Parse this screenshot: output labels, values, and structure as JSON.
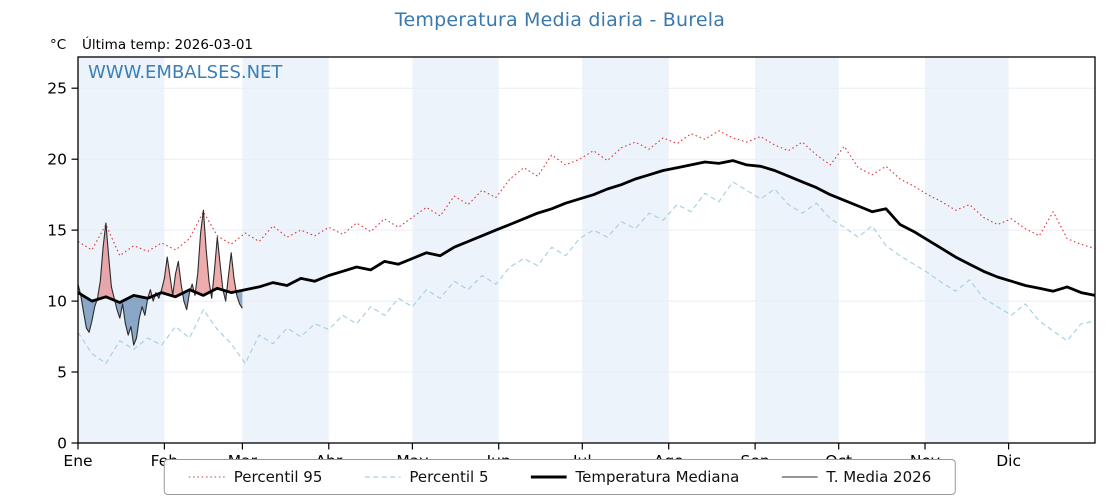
{
  "title": "Temperatura Media diaria - Burela",
  "watermark": "WWW.EMBALSES.NET",
  "header": {
    "unit_label": "°C",
    "last_temp_label": "Última temp: 2026-03-01"
  },
  "colors": {
    "title": "#3a79ae",
    "watermark": "#3a7fb8",
    "band": "#edf3fa",
    "grid": "#e7eef5",
    "axis": "#000000",
    "fill_above": "rgba(222,92,92,0.5)",
    "fill_below": "rgba(72,116,166,0.6)"
  },
  "chart_data": {
    "type": "line",
    "title": "Temperatura Media diaria - Burela",
    "xlabel": "",
    "ylabel": "°C",
    "ylim": [
      0,
      27.2
    ],
    "yticks": [
      0,
      5,
      10,
      15,
      20,
      25
    ],
    "months": [
      "Ene",
      "Feb",
      "Mar",
      "Abr",
      "May",
      "Jun",
      "Jul",
      "Ago",
      "Sep",
      "Oct",
      "Nov",
      "Dic"
    ],
    "month_days": [
      31,
      28,
      31,
      30,
      31,
      30,
      31,
      31,
      30,
      31,
      30,
      31
    ],
    "legend_position": "bottom",
    "series": [
      {
        "name": "Percentil 95",
        "style": "dotted",
        "color": "#d93b3b",
        "width": 1.1,
        "step": 5,
        "values": [
          14.2,
          13.6,
          15.4,
          13.2,
          13.9,
          13.5,
          14.1,
          13.6,
          14.4,
          16.3,
          14.6,
          14.0,
          14.8,
          14.2,
          15.3,
          14.5,
          15.0,
          14.6,
          15.2,
          14.7,
          15.5,
          14.9,
          15.8,
          15.2,
          15.9,
          16.6,
          16.0,
          17.4,
          16.8,
          17.8,
          17.3,
          18.6,
          19.4,
          18.8,
          20.3,
          19.6,
          20.0,
          20.6,
          19.9,
          20.8,
          21.2,
          20.7,
          21.5,
          21.1,
          21.8,
          21.4,
          22.0,
          21.5,
          21.2,
          21.6,
          21.0,
          20.6,
          21.2,
          20.3,
          19.6,
          20.9,
          19.4,
          18.9,
          19.5,
          18.6,
          18.1,
          17.5,
          17.0,
          16.4,
          16.8,
          15.9,
          15.4,
          15.8,
          15.1,
          14.6,
          16.3,
          14.4,
          14.0,
          13.7
        ]
      },
      {
        "name": "Percentil 5",
        "style": "dashed",
        "color": "#a9d1e3",
        "width": 1.2,
        "step": 5,
        "values": [
          7.8,
          6.3,
          5.6,
          7.2,
          6.6,
          7.4,
          6.9,
          8.2,
          7.4,
          9.4,
          8.0,
          7.0,
          5.6,
          7.6,
          7.0,
          8.1,
          7.5,
          8.4,
          8.0,
          9.0,
          8.4,
          9.6,
          9.0,
          10.2,
          9.6,
          10.8,
          10.2,
          11.4,
          10.8,
          11.8,
          11.2,
          12.4,
          13.0,
          12.5,
          13.8,
          13.2,
          14.4,
          15.0,
          14.5,
          15.6,
          15.1,
          16.2,
          15.7,
          16.8,
          16.3,
          17.6,
          17.0,
          18.4,
          17.8,
          17.2,
          17.9,
          16.8,
          16.2,
          16.9,
          15.8,
          15.2,
          14.5,
          15.3,
          13.9,
          13.2,
          12.6,
          12.0,
          11.3,
          10.7,
          11.5,
          10.2,
          9.6,
          9.0,
          9.8,
          8.6,
          7.9,
          7.2,
          8.4,
          8.6
        ]
      },
      {
        "name": "Temperatura Mediana",
        "style": "solid",
        "color": "#000000",
        "width": 2.8,
        "step": 5,
        "values": [
          10.6,
          10.0,
          10.3,
          9.9,
          10.4,
          10.2,
          10.6,
          10.3,
          10.8,
          10.4,
          10.9,
          10.6,
          10.8,
          11.0,
          11.3,
          11.1,
          11.6,
          11.4,
          11.8,
          12.1,
          12.4,
          12.2,
          12.8,
          12.6,
          13.0,
          13.4,
          13.2,
          13.8,
          14.2,
          14.6,
          15.0,
          15.4,
          15.8,
          16.2,
          16.5,
          16.9,
          17.2,
          17.5,
          17.9,
          18.2,
          18.6,
          18.9,
          19.2,
          19.4,
          19.6,
          19.8,
          19.7,
          19.9,
          19.6,
          19.5,
          19.2,
          18.8,
          18.4,
          18.0,
          17.5,
          17.1,
          16.7,
          16.3,
          16.5,
          15.4,
          14.9,
          14.3,
          13.7,
          13.1,
          12.6,
          12.1,
          11.7,
          11.4,
          11.1,
          10.9,
          10.7,
          11.0,
          10.6,
          10.4
        ]
      },
      {
        "name": "T. Media 2026",
        "style": "solid",
        "color": "#2b2b2b",
        "width": 1.1,
        "step": 1,
        "values": [
          11.2,
          10.4,
          9.2,
          8.1,
          7.8,
          8.6,
          9.6,
          10.2,
          11.4,
          13.8,
          15.5,
          13.2,
          11.0,
          10.2,
          9.4,
          8.8,
          9.8,
          8.4,
          7.6,
          8.2,
          6.9,
          7.4,
          8.8,
          9.6,
          9.0,
          10.2,
          10.8,
          10.0,
          10.6,
          10.2,
          10.8,
          11.6,
          13.1,
          11.8,
          10.4,
          11.9,
          12.8,
          11.2,
          10.0,
          9.4,
          10.6,
          11.2,
          10.4,
          12.0,
          14.8,
          16.4,
          13.6,
          11.4,
          10.2,
          12.2,
          14.5,
          12.6,
          10.8,
          10.0,
          11.8,
          13.4,
          11.6,
          10.4,
          9.8,
          9.5
        ]
      }
    ]
  }
}
